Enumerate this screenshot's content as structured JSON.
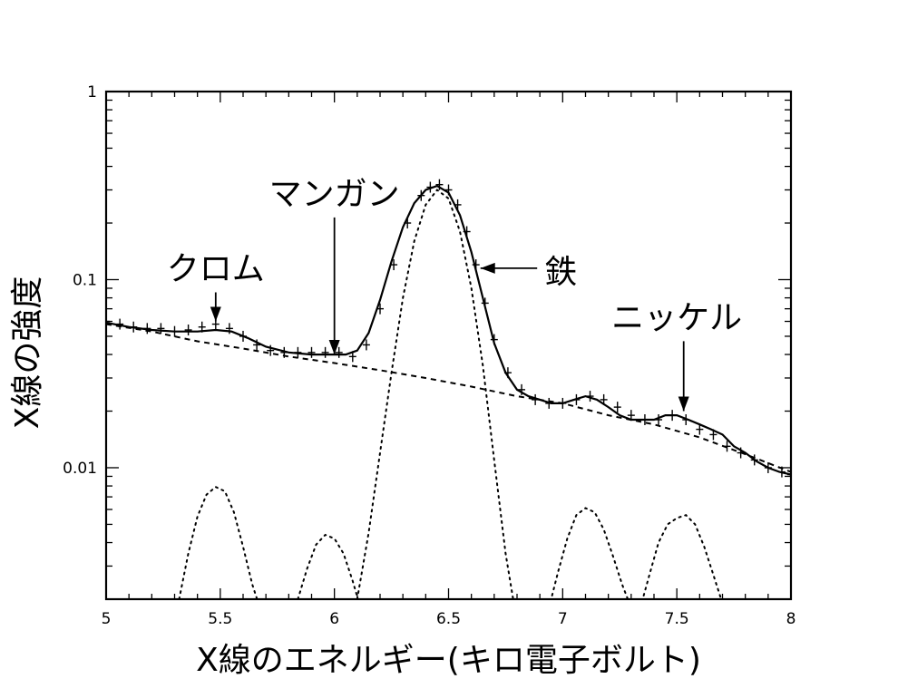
{
  "chart_data": {
    "type": "line",
    "title": "",
    "xlabel": "X線のエネルギー(キロ電子ボルト)",
    "ylabel": "X線の強度",
    "xlim": [
      5,
      8
    ],
    "ylim": [
      0.002,
      1
    ],
    "yscale": "log",
    "xticks": [
      5,
      5.5,
      6,
      6.5,
      7,
      7.5,
      8
    ],
    "xtick_labels": [
      "5",
      "5.5",
      "6",
      "6.5",
      "7",
      "7.5",
      "8"
    ],
    "yticks": [
      1,
      0.1,
      0.01
    ],
    "ytick_labels": [
      "1",
      "0.1",
      "0.01"
    ],
    "grid": false,
    "legend": "none",
    "annotations": [
      {
        "text": "クロム",
        "x": 5.48,
        "y": 0.1,
        "arrow_to": [
          5.48,
          0.06
        ]
      },
      {
        "text": "マンガン",
        "x": 6.0,
        "y": 0.25,
        "arrow_to": [
          6.0,
          0.04
        ]
      },
      {
        "text": "鉄",
        "x": 6.92,
        "y": 0.11,
        "arrow_to": [
          6.64,
          0.115
        ]
      },
      {
        "text": "ニッケル",
        "x": 7.5,
        "y": 0.055,
        "arrow_to": [
          7.53,
          0.02
        ]
      }
    ],
    "series": [
      {
        "style": "data",
        "x": [
          5.0,
          5.06,
          5.12,
          5.18,
          5.24,
          5.3,
          5.36,
          5.42,
          5.48,
          5.54,
          5.6,
          5.66,
          5.72,
          5.78,
          5.84,
          5.9,
          5.96,
          6.02,
          6.08,
          6.14,
          6.2,
          6.26,
          6.32,
          6.38,
          6.42,
          6.46,
          6.5,
          6.54,
          6.58,
          6.62,
          6.66,
          6.7,
          6.76,
          6.82,
          6.88,
          6.94,
          7.0,
          7.06,
          7.12,
          7.18,
          7.24,
          7.3,
          7.36,
          7.42,
          7.48,
          7.54,
          7.6,
          7.66,
          7.72,
          7.78,
          7.84,
          7.9,
          7.96,
          8.0
        ],
        "y": [
          0.06,
          0.058,
          0.056,
          0.055,
          0.055,
          0.053,
          0.054,
          0.056,
          0.058,
          0.055,
          0.05,
          0.045,
          0.042,
          0.041,
          0.041,
          0.041,
          0.041,
          0.041,
          0.039,
          0.045,
          0.07,
          0.12,
          0.2,
          0.28,
          0.31,
          0.32,
          0.3,
          0.25,
          0.18,
          0.12,
          0.075,
          0.048,
          0.032,
          0.026,
          0.023,
          0.022,
          0.022,
          0.023,
          0.024,
          0.023,
          0.021,
          0.019,
          0.018,
          0.018,
          0.019,
          0.018,
          0.016,
          0.015,
          0.013,
          0.012,
          0.011,
          0.01,
          0.0095,
          0.0092
        ]
      },
      {
        "style": "solid",
        "x": [
          5.0,
          5.1,
          5.2,
          5.3,
          5.4,
          5.48,
          5.55,
          5.62,
          5.7,
          5.8,
          5.9,
          6.0,
          6.05,
          6.1,
          6.15,
          6.2,
          6.25,
          6.3,
          6.35,
          6.4,
          6.45,
          6.5,
          6.55,
          6.6,
          6.65,
          6.7,
          6.75,
          6.8,
          6.85,
          6.9,
          6.95,
          7.0,
          7.05,
          7.1,
          7.15,
          7.2,
          7.25,
          7.3,
          7.35,
          7.4,
          7.45,
          7.5,
          7.55,
          7.6,
          7.65,
          7.7,
          7.75,
          7.8,
          7.85,
          7.9,
          7.95,
          8.0
        ],
        "y": [
          0.059,
          0.056,
          0.054,
          0.053,
          0.053,
          0.054,
          0.053,
          0.049,
          0.044,
          0.041,
          0.04,
          0.04,
          0.04,
          0.042,
          0.052,
          0.078,
          0.125,
          0.19,
          0.255,
          0.3,
          0.315,
          0.29,
          0.22,
          0.14,
          0.08,
          0.046,
          0.032,
          0.026,
          0.024,
          0.023,
          0.022,
          0.022,
          0.023,
          0.024,
          0.023,
          0.021,
          0.019,
          0.018,
          0.018,
          0.018,
          0.019,
          0.019,
          0.018,
          0.017,
          0.016,
          0.015,
          0.013,
          0.012,
          0.0108,
          0.01,
          0.0095,
          0.0092
        ]
      },
      {
        "style": "dashed",
        "x": [
          5.0,
          5.2,
          5.4,
          5.6,
          5.8,
          6.0,
          6.2,
          6.4,
          6.6,
          6.8,
          7.0,
          7.2,
          7.4,
          7.6,
          7.8,
          8.0
        ],
        "y": [
          0.058,
          0.053,
          0.047,
          0.043,
          0.039,
          0.036,
          0.033,
          0.03,
          0.027,
          0.024,
          0.022,
          0.019,
          0.017,
          0.0145,
          0.0118,
          0.0095
        ]
      },
      {
        "style": "dotted",
        "x": [
          6.1,
          6.15,
          6.2,
          6.25,
          6.3,
          6.35,
          6.4,
          6.45,
          6.5,
          6.55,
          6.6,
          6.65,
          6.7,
          6.75,
          6.8
        ],
        "y": [
          0.002,
          0.0045,
          0.012,
          0.032,
          0.08,
          0.16,
          0.25,
          0.3,
          0.27,
          0.18,
          0.09,
          0.035,
          0.011,
          0.0035,
          0.0015
        ]
      },
      {
        "style": "dotted",
        "x": [
          5.32,
          5.36,
          5.4,
          5.44,
          5.48,
          5.52,
          5.56,
          5.6,
          5.64,
          5.68
        ],
        "y": [
          0.002,
          0.0035,
          0.0055,
          0.0072,
          0.0079,
          0.0075,
          0.0058,
          0.0038,
          0.0024,
          0.0017
        ]
      },
      {
        "style": "dotted",
        "x": [
          5.84,
          5.88,
          5.92,
          5.96,
          6.0,
          6.04,
          6.08,
          6.12
        ],
        "y": [
          0.002,
          0.0029,
          0.0039,
          0.0044,
          0.0042,
          0.0035,
          0.0025,
          0.0017
        ]
      },
      {
        "style": "dotted",
        "x": [
          6.94,
          6.98,
          7.02,
          7.06,
          7.1,
          7.14,
          7.18,
          7.22,
          7.26,
          7.3
        ],
        "y": [
          0.0018,
          0.0028,
          0.0042,
          0.0056,
          0.0061,
          0.0058,
          0.0047,
          0.0034,
          0.0024,
          0.0018
        ]
      },
      {
        "style": "dotted",
        "x": [
          7.34,
          7.38,
          7.42,
          7.46,
          7.5,
          7.54,
          7.58,
          7.62,
          7.66,
          7.7
        ],
        "y": [
          0.0018,
          0.0027,
          0.004,
          0.005,
          0.0054,
          0.0056,
          0.005,
          0.0038,
          0.0027,
          0.0019
        ]
      }
    ]
  }
}
